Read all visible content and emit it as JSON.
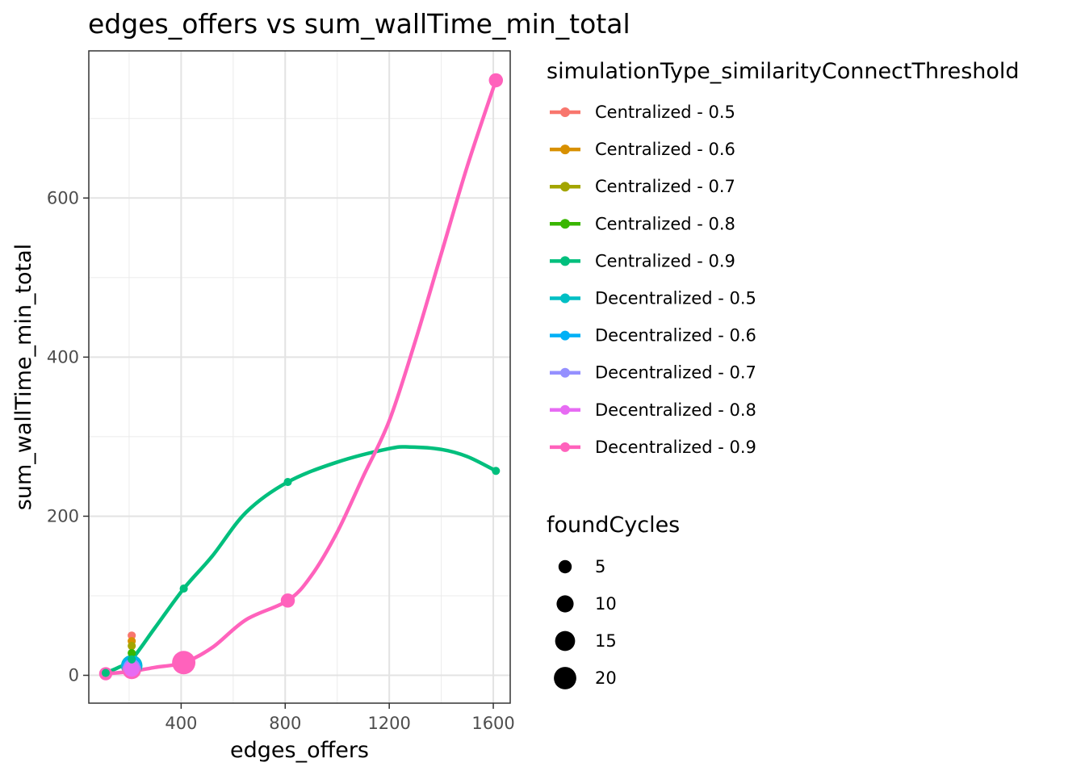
{
  "chart_data": {
    "type": "line",
    "title": "edges_offers  vs  sum_wallTime_min_total",
    "xlabel": "edges_offers",
    "ylabel": "sum_wallTime_min_total",
    "xlim": [
      45,
      1665
    ],
    "ylim": [
      -35,
      785
    ],
    "x_ticks": [
      400,
      800,
      1200,
      1600
    ],
    "x_tick_labels": [
      "400",
      "800",
      "1200",
      "1600"
    ],
    "y_ticks": [
      0,
      200,
      400,
      600
    ],
    "y_tick_labels": [
      "0",
      "200",
      "400",
      "600"
    ],
    "grid": true,
    "legend_position": "right",
    "color_legend": {
      "title": "simulationType_similarityConnectThreshold",
      "entries": [
        {
          "label": "Centralized - 0.5",
          "color": "#F8766D"
        },
        {
          "label": "Centralized - 0.6",
          "color": "#D89000"
        },
        {
          "label": "Centralized - 0.7",
          "color": "#A3A500"
        },
        {
          "label": "Centralized - 0.8",
          "color": "#39B600"
        },
        {
          "label": "Centralized - 0.9",
          "color": "#00BF7D"
        },
        {
          "label": "Decentralized - 0.5",
          "color": "#00BFC4"
        },
        {
          "label": "Decentralized - 0.6",
          "color": "#00B0F6"
        },
        {
          "label": "Decentralized - 0.7",
          "color": "#9590FF"
        },
        {
          "label": "Decentralized - 0.8",
          "color": "#E76BF3"
        },
        {
          "label": "Decentralized - 0.9",
          "color": "#FF62BC"
        }
      ]
    },
    "size_legend": {
      "title": "foundCycles",
      "entries": [
        {
          "label": "5",
          "value": 5
        },
        {
          "label": "10",
          "value": 10
        },
        {
          "label": "15",
          "value": 15
        },
        {
          "label": "20",
          "value": 20
        }
      ]
    },
    "series": [
      {
        "name": "Centralized - 0.5",
        "color": "#F8766D",
        "points": [
          {
            "x": 210,
            "y": 50,
            "size": 1
          }
        ]
      },
      {
        "name": "Centralized - 0.6",
        "color": "#D89000",
        "points": [
          {
            "x": 210,
            "y": 43,
            "size": 1
          }
        ]
      },
      {
        "name": "Centralized - 0.7",
        "color": "#A3A500",
        "points": [
          {
            "x": 210,
            "y": 37,
            "size": 1
          }
        ]
      },
      {
        "name": "Centralized - 0.8",
        "color": "#39B600",
        "points": [
          {
            "x": 210,
            "y": 28,
            "size": 1
          }
        ]
      },
      {
        "name": "Centralized - 0.9",
        "color": "#00BF7D",
        "points": [
          {
            "x": 110,
            "y": 3,
            "size": 1
          },
          {
            "x": 210,
            "y": 20,
            "size": 1
          },
          {
            "x": 410,
            "y": 109,
            "size": 1
          },
          {
            "x": 810,
            "y": 243,
            "size": 1
          },
          {
            "x": 1610,
            "y": 257,
            "size": 1
          }
        ]
      },
      {
        "name": "Decentralized - 0.5",
        "color": "#00BFC4",
        "points": [
          {
            "x": 210,
            "y": 12,
            "size": 18
          }
        ]
      },
      {
        "name": "Decentralized - 0.6",
        "color": "#00B0F6",
        "points": [
          {
            "x": 210,
            "y": 12,
            "size": 15
          }
        ]
      },
      {
        "name": "Decentralized - 0.7",
        "color": "#9590FF",
        "points": [
          {
            "x": 210,
            "y": 10,
            "size": 10
          }
        ]
      },
      {
        "name": "Decentralized - 0.8",
        "color": "#E76BF3",
        "points": [
          {
            "x": 210,
            "y": 8,
            "size": 8
          }
        ]
      },
      {
        "name": "Decentralized - 0.9",
        "color": "#FF62BC",
        "points": [
          {
            "x": 110,
            "y": 2,
            "size": 5
          },
          {
            "x": 210,
            "y": 7,
            "size": 13
          },
          {
            "x": 410,
            "y": 16,
            "size": 22
          },
          {
            "x": 810,
            "y": 94,
            "size": 6
          },
          {
            "x": 1610,
            "y": 748,
            "size": 6
          }
        ]
      }
    ],
    "smooth_curves": [
      {
        "series": "Centralized - 0.9",
        "color": "#00BF7D",
        "x": [
          110,
          160,
          210,
          300,
          410,
          520,
          650,
          810,
          1000,
          1200,
          1280,
          1400,
          1500,
          1610
        ],
        "y": [
          3,
          10,
          20,
          60,
          109,
          150,
          205,
          243,
          268,
          285,
          287,
          284,
          275,
          257
        ]
      },
      {
        "series": "Decentralized - 0.9",
        "color": "#FF62BC",
        "x": [
          110,
          210,
          300,
          410,
          520,
          650,
          810,
          900,
          1000,
          1100,
          1200,
          1300,
          1400,
          1500,
          1610
        ],
        "y": [
          2,
          5,
          10,
          16,
          35,
          70,
          94,
          125,
          180,
          250,
          320,
          420,
          530,
          640,
          748
        ]
      }
    ]
  }
}
